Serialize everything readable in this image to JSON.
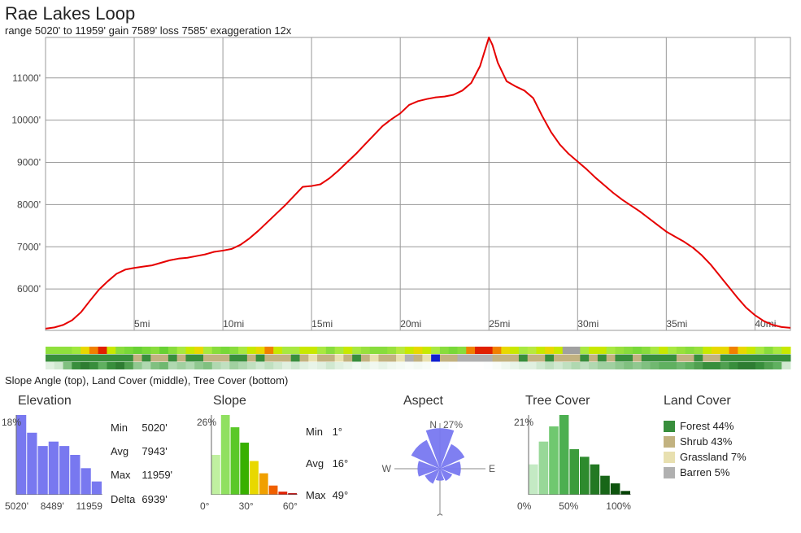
{
  "header": {
    "title": "Rae Lakes Loop",
    "subtitle": "range 5020' to 11959'  gain 7589'  loss 7585'  exaggeration 12x"
  },
  "elevation_chart": {
    "type": "line",
    "line_color": "#e60000",
    "line_width": 2,
    "grid_color": "#999999",
    "background": "#ffffff",
    "x_domain_mi": [
      0,
      42
    ],
    "y_domain_ft": [
      5020,
      11959
    ],
    "y_ticks_ft": [
      6000,
      7000,
      8000,
      9000,
      10000,
      11000
    ],
    "y_tick_labels": [
      "6000'",
      "7000'",
      "8000'",
      "9000'",
      "10000'",
      "11000'"
    ],
    "x_ticks_mi": [
      5,
      10,
      15,
      20,
      25,
      30,
      35,
      40
    ],
    "x_tick_labels": [
      "5mi",
      "10mi",
      "15mi",
      "20mi",
      "25mi",
      "30mi",
      "35mi",
      "40mi"
    ],
    "axis_fontsize": 12,
    "axis_color": "#444444",
    "profile_points": [
      [
        0.0,
        5060
      ],
      [
        0.5,
        5090
      ],
      [
        1.0,
        5150
      ],
      [
        1.5,
        5260
      ],
      [
        2.0,
        5450
      ],
      [
        2.5,
        5720
      ],
      [
        3.0,
        5980
      ],
      [
        3.5,
        6180
      ],
      [
        4.0,
        6360
      ],
      [
        4.5,
        6460
      ],
      [
        5.0,
        6500
      ],
      [
        5.5,
        6530
      ],
      [
        6.0,
        6560
      ],
      [
        6.5,
        6620
      ],
      [
        7.0,
        6680
      ],
      [
        7.5,
        6720
      ],
      [
        8.0,
        6740
      ],
      [
        8.5,
        6780
      ],
      [
        9.0,
        6820
      ],
      [
        9.5,
        6880
      ],
      [
        10.0,
        6910
      ],
      [
        10.5,
        6950
      ],
      [
        11.0,
        7050
      ],
      [
        11.5,
        7200
      ],
      [
        12.0,
        7380
      ],
      [
        12.5,
        7580
      ],
      [
        13.0,
        7780
      ],
      [
        13.5,
        7980
      ],
      [
        14.0,
        8200
      ],
      [
        14.5,
        8420
      ],
      [
        15.0,
        8440
      ],
      [
        15.5,
        8480
      ],
      [
        16.0,
        8620
      ],
      [
        16.5,
        8800
      ],
      [
        17.0,
        9000
      ],
      [
        17.5,
        9200
      ],
      [
        18.0,
        9420
      ],
      [
        18.5,
        9640
      ],
      [
        19.0,
        9860
      ],
      [
        19.5,
        10020
      ],
      [
        20.0,
        10160
      ],
      [
        20.5,
        10360
      ],
      [
        21.0,
        10450
      ],
      [
        21.5,
        10500
      ],
      [
        22.0,
        10540
      ],
      [
        22.5,
        10560
      ],
      [
        23.0,
        10600
      ],
      [
        23.5,
        10700
      ],
      [
        24.0,
        10880
      ],
      [
        24.5,
        11280
      ],
      [
        25.0,
        11959
      ],
      [
        25.2,
        11780
      ],
      [
        25.5,
        11360
      ],
      [
        26.0,
        10920
      ],
      [
        26.5,
        10800
      ],
      [
        27.0,
        10700
      ],
      [
        27.5,
        10520
      ],
      [
        28.0,
        10100
      ],
      [
        28.5,
        9720
      ],
      [
        29.0,
        9420
      ],
      [
        29.5,
        9200
      ],
      [
        30.0,
        9020
      ],
      [
        30.5,
        8840
      ],
      [
        31.0,
        8640
      ],
      [
        31.5,
        8460
      ],
      [
        32.0,
        8280
      ],
      [
        32.5,
        8120
      ],
      [
        33.0,
        7980
      ],
      [
        33.5,
        7840
      ],
      [
        34.0,
        7680
      ],
      [
        34.5,
        7520
      ],
      [
        35.0,
        7360
      ],
      [
        35.5,
        7240
      ],
      [
        36.0,
        7120
      ],
      [
        36.5,
        6980
      ],
      [
        37.0,
        6800
      ],
      [
        37.5,
        6580
      ],
      [
        38.0,
        6320
      ],
      [
        38.5,
        6060
      ],
      [
        39.0,
        5800
      ],
      [
        39.5,
        5560
      ],
      [
        40.0,
        5380
      ],
      [
        40.5,
        5240
      ],
      [
        41.0,
        5150
      ],
      [
        41.5,
        5100
      ],
      [
        42.0,
        5080
      ]
    ]
  },
  "strips": {
    "label": "Slope Angle (top), Land Cover (middle), Tree Cover (bottom)",
    "slope_colors": [
      "#8fe03c",
      "#8fe03c",
      "#8fe03c",
      "#9fe83c",
      "#e8d800",
      "#f08000",
      "#e02000",
      "#c8e800",
      "#88dc3c",
      "#78d838",
      "#68d034",
      "#78d838",
      "#88dc3c",
      "#68d034",
      "#88dc3c",
      "#a8e840",
      "#c8e800",
      "#e8d800",
      "#a8e840",
      "#88dc3c",
      "#78d838",
      "#88dc3c",
      "#a8e840",
      "#c8e800",
      "#e8d800",
      "#f08000",
      "#c8e800",
      "#a8e840",
      "#a8e840",
      "#c8e800",
      "#c8e800",
      "#a8e840",
      "#88dc3c",
      "#a8e840",
      "#c8e800",
      "#a8e840",
      "#98e03c",
      "#88dc3c",
      "#88dc3c",
      "#98e03c",
      "#b8e840",
      "#c8e800",
      "#e8d800",
      "#c8e800",
      "#a8e840",
      "#88dc3c",
      "#78d838",
      "#88dc3c",
      "#f08000",
      "#e02000",
      "#e02000",
      "#f08000",
      "#e8d800",
      "#c8e800",
      "#a8e840",
      "#b8e840",
      "#c8e800",
      "#e8d800",
      "#c8e800",
      "#a0a0a0",
      "#a0a0a0",
      "#a8e840",
      "#c8e800",
      "#c8e800",
      "#a8e840",
      "#98e03c",
      "#88dc3c",
      "#78d838",
      "#88dc3c",
      "#a8e840",
      "#c8e800",
      "#a8e840",
      "#98e03c",
      "#88dc3c",
      "#98e03c",
      "#c8e800",
      "#e8d800",
      "#e8d800",
      "#f08000",
      "#e8d800",
      "#c8e800",
      "#a8e840",
      "#88dc3c",
      "#a8e840",
      "#c8e800"
    ],
    "landcover_colors": [
      "#388e3c",
      "#388e3c",
      "#388e3c",
      "#388e3c",
      "#388e3c",
      "#388e3c",
      "#388e3c",
      "#388e3c",
      "#388e3c",
      "#388e3c",
      "#c2b280",
      "#388e3c",
      "#c2b280",
      "#c2b280",
      "#388e3c",
      "#c2b280",
      "#388e3c",
      "#388e3c",
      "#c2b280",
      "#c2b280",
      "#c2b280",
      "#388e3c",
      "#388e3c",
      "#c2b280",
      "#388e3c",
      "#c2b280",
      "#c2b280",
      "#c2b280",
      "#388e3c",
      "#c2b280",
      "#e8e0b0",
      "#c2b280",
      "#c2b280",
      "#e8e0b0",
      "#c2b280",
      "#388e3c",
      "#c2b280",
      "#e8e0b0",
      "#c2b280",
      "#c2b280",
      "#e8e0b0",
      "#b0b0b0",
      "#c2b280",
      "#e8e0b0",
      "#1020d0",
      "#c2b280",
      "#c2b280",
      "#b0b0b0",
      "#b0b0b0",
      "#b0b0b0",
      "#b0b0b0",
      "#c2b280",
      "#c2b280",
      "#c2b280",
      "#388e3c",
      "#c2b280",
      "#c2b280",
      "#388e3c",
      "#c2b280",
      "#c2b280",
      "#c2b280",
      "#388e3c",
      "#c2b280",
      "#388e3c",
      "#c2b280",
      "#388e3c",
      "#388e3c",
      "#c2b280",
      "#388e3c",
      "#388e3c",
      "#388e3c",
      "#388e3c",
      "#c2b280",
      "#c2b280",
      "#388e3c",
      "#c2b280",
      "#c2b280",
      "#388e3c",
      "#388e3c",
      "#388e3c",
      "#388e3c",
      "#388e3c",
      "#388e3c",
      "#388e3c",
      "#388e3c"
    ],
    "treecover_colors": [
      "#e0f0e0",
      "#d0e8d0",
      "#80c080",
      "#388e3c",
      "#2e7d32",
      "#388e3c",
      "#60b060",
      "#388e3c",
      "#2e7d32",
      "#50a050",
      "#90c890",
      "#b0d8b0",
      "#80c080",
      "#70b870",
      "#b0d8b0",
      "#a0d0a0",
      "#b0d8b0",
      "#90c890",
      "#80c080",
      "#b0d8b0",
      "#c0e0c0",
      "#a0d0a0",
      "#b0d8b0",
      "#c0e0c0",
      "#d0e8d0",
      "#c0e0c0",
      "#d0e8d0",
      "#e0f0e0",
      "#d0e8d0",
      "#e0f0e0",
      "#e8f4e8",
      "#e0f0e0",
      "#d0e8d0",
      "#e0f0e0",
      "#e8f4e8",
      "#f0f8f0",
      "#e8f4e8",
      "#f0f8f0",
      "#e8f4e8",
      "#f0f8f0",
      "#f4faf4",
      "#f8fcf8",
      "#f4faf4",
      "#f8fcf8",
      "#fcfefe",
      "#f8fcf8",
      "#fcfefe",
      "#ffffff",
      "#ffffff",
      "#ffffff",
      "#fcfefe",
      "#f8fcf8",
      "#f0f8f0",
      "#e8f4e8",
      "#e0f0e0",
      "#e0f0e0",
      "#d0e8d0",
      "#c0e0c0",
      "#d0e8d0",
      "#c0e0c0",
      "#b0d8b0",
      "#c0e0c0",
      "#b0d8b0",
      "#a0d0a0",
      "#a0d0a0",
      "#90c890",
      "#80c080",
      "#90c890",
      "#80c080",
      "#70b870",
      "#60b060",
      "#60b060",
      "#70b870",
      "#60b060",
      "#50a050",
      "#388e3c",
      "#388e3c",
      "#50a050",
      "#388e3c",
      "#2e7d32",
      "#2e7d32",
      "#388e3c",
      "#50a050",
      "#60b060",
      "#d0e8d0"
    ]
  },
  "elevation_hist": {
    "title": "Elevation",
    "peak_label": "18%",
    "bar_color": "#7878f0",
    "x_labels": [
      "5020'",
      "8489'",
      "11959"
    ],
    "values": [
      18,
      14,
      11,
      12,
      11,
      9,
      6,
      3
    ],
    "stats": {
      "min": "5020'",
      "avg": "7943'",
      "max": "11959'",
      "delta": "6939'"
    }
  },
  "slope_hist": {
    "title": "Slope",
    "peak_label": "26%",
    "x_labels": [
      "0°",
      "30°",
      "60°"
    ],
    "values": [
      13,
      26,
      22,
      17,
      11,
      7,
      3,
      1,
      0.5
    ],
    "bar_colors": [
      "#c0f0a0",
      "#90e060",
      "#5ac828",
      "#38b000",
      "#e8d800",
      "#f0a000",
      "#f06000",
      "#e02000",
      "#b00000"
    ],
    "stats": {
      "min": "1°",
      "avg": "16°",
      "max": "49°"
    }
  },
  "aspect": {
    "title": "Aspect",
    "north_pct": "27%",
    "labels": {
      "n": "N",
      "s": "S",
      "e": "E",
      "w": "W"
    },
    "fill_color": "#7878f0",
    "axis_color": "#888888",
    "petals_pct": [
      27,
      18,
      14,
      9,
      8,
      11,
      15,
      21
    ]
  },
  "treecover_hist": {
    "title": "Tree Cover",
    "peak_label": "21%",
    "x_labels": [
      "0%",
      "50%",
      "100%"
    ],
    "values": [
      8,
      14,
      18,
      21,
      12,
      10,
      8,
      5,
      3,
      1
    ],
    "bar_colors": [
      "#c4eac4",
      "#98d898",
      "#70c870",
      "#4caf50",
      "#3c9c3c",
      "#2e8b2e",
      "#237823",
      "#186618",
      "#0e540e",
      "#044204"
    ]
  },
  "landcover": {
    "title": "Land Cover",
    "items": [
      {
        "label": "Forest 44%",
        "color": "#388e3c"
      },
      {
        "label": "Shrub 43%",
        "color": "#c2b280"
      },
      {
        "label": "Grassland 7%",
        "color": "#e8e0b0"
      },
      {
        "label": "Barren 5%",
        "color": "#b0b0b0"
      }
    ]
  }
}
